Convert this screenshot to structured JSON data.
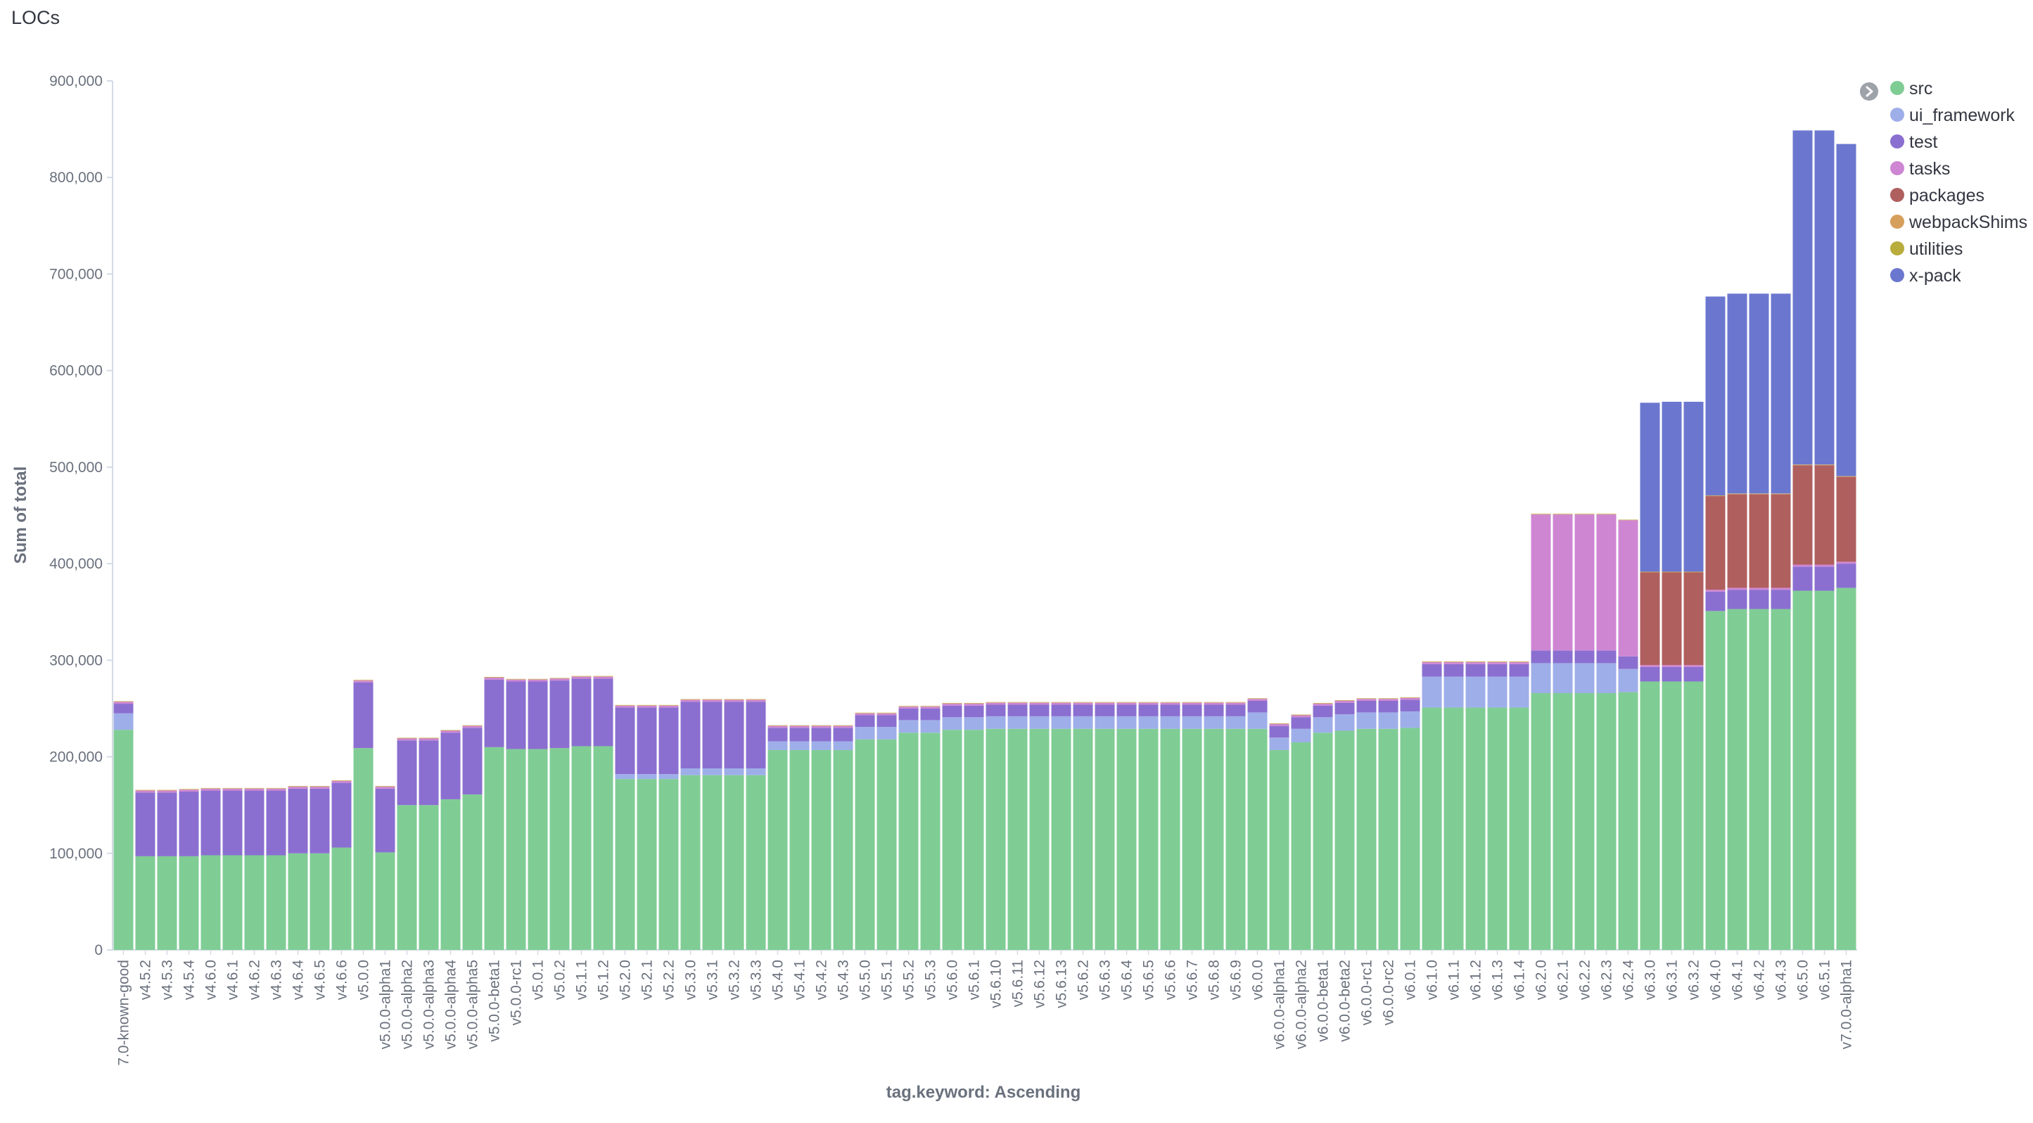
{
  "panel": {
    "title": "LOCs"
  },
  "colors": {
    "src": "#7fcd95",
    "ui_framework": "#9eaee9",
    "test": "#8b6fd0",
    "tasks": "#ce86d3",
    "packages": "#b05f5f",
    "webpackShims": "#d69f5c",
    "utilities": "#b8ac3c",
    "x-pack": "#6b77cf",
    "legend_toggle": "#9ea2a9"
  },
  "legend": {
    "toggle_icon": "chevron-right-icon",
    "position": "top-right"
  },
  "chart_data": {
    "type": "bar",
    "stacked": true,
    "title": "LOCs",
    "xlabel": "tag.keyword: Ascending",
    "ylabel": "Sum of total",
    "ylim": [
      0,
      900000
    ],
    "yticks": [
      "0",
      "100,000",
      "200,000",
      "300,000",
      "400,000",
      "500,000",
      "600,000",
      "700,000",
      "800,000",
      "900,000"
    ],
    "grid": false,
    "categories": [
      "7.0-known-good",
      "v4.5.2",
      "v4.5.3",
      "v4.5.4",
      "v4.6.0",
      "v4.6.1",
      "v4.6.2",
      "v4.6.3",
      "v4.6.4",
      "v4.6.5",
      "v4.6.6",
      "v5.0.0",
      "v5.0.0-alpha1",
      "v5.0.0-alpha2",
      "v5.0.0-alpha3",
      "v5.0.0-alpha4",
      "v5.0.0-alpha5",
      "v5.0.0-beta1",
      "v5.0.0-rc1",
      "v5.0.1",
      "v5.0.2",
      "v5.1.1",
      "v5.1.2",
      "v5.2.0",
      "v5.2.1",
      "v5.2.2",
      "v5.3.0",
      "v5.3.1",
      "v5.3.2",
      "v5.3.3",
      "v5.4.0",
      "v5.4.1",
      "v5.4.2",
      "v5.4.3",
      "v5.5.0",
      "v5.5.1",
      "v5.5.2",
      "v5.5.3",
      "v5.6.0",
      "v5.6.1",
      "v5.6.10",
      "v5.6.11",
      "v5.6.12",
      "v5.6.13",
      "v5.6.2",
      "v5.6.3",
      "v5.6.4",
      "v5.6.5",
      "v5.6.6",
      "v5.6.7",
      "v5.6.8",
      "v5.6.9",
      "v6.0.0",
      "v6.0.0-alpha1",
      "v6.0.0-alpha2",
      "v6.0.0-beta1",
      "v6.0.0-beta2",
      "v6.0.0-rc1",
      "v6.0.0-rc2",
      "v6.0.1",
      "v6.1.0",
      "v6.1.1",
      "v6.1.2",
      "v6.1.3",
      "v6.1.4",
      "v6.2.0",
      "v6.2.1",
      "v6.2.2",
      "v6.2.3",
      "v6.2.4",
      "v6.3.0",
      "v6.3.1",
      "v6.3.2",
      "v6.4.0",
      "v6.4.1",
      "v6.4.2",
      "v6.4.3",
      "v6.5.0",
      "v6.5.1",
      "v7.0.0-alpha1"
    ],
    "xtick_labels": [
      "7.0-known-good",
      "v4.5.2",
      "v4.5.3",
      "v4.5.4",
      "v4.6.0",
      "v4.6.1",
      "v4.6.2",
      "v4.6.3",
      "v4.6.4",
      "v4.6.5",
      "v4.6.6",
      "v5.0.0",
      "v5.0.0-alpha1",
      "v5.0.0-alpha2",
      "v5.0.0-alpha3",
      "v5.0.0-alpha4",
      "v5.0.0-alpha5",
      "v5.0.0-beta1",
      "v5.0.0-rc1",
      "v5.0.1",
      "v5.0.2",
      "v5.1.1",
      "v5.1.2",
      "v5.2.0",
      "v5.2.1",
      "v5.2.2",
      "v5.3.0",
      "v5.3.1",
      "v5.3.2",
      "v5.3.3",
      "v5.4.0",
      "v5.4.1",
      "v5.4.2",
      "v5.4.3",
      "v5.5.0",
      "v5.5.1",
      "v5.5.2",
      "v5.5.3",
      "v5.6.0",
      "v5.6.1",
      "v5.6.10",
      "v5.6.11",
      "v5.6.12",
      "v5.6.13",
      "v5.6.2",
      "v5.6.3",
      "v5.6.4",
      "v5.6.5",
      "v5.6.6",
      "v5.6.7",
      "v5.6.8",
      "v5.6.9",
      "v6.0.0",
      "v6.0.0-alpha1",
      "v6.0.0-alpha2",
      "v6.0.0-beta1",
      "v6.0.0-beta2",
      "v6.0.0-rc1",
      "v6.0.0-rc2",
      "v6.0.1",
      "v6.1.0",
      "v6.1.1",
      "v6.1.2",
      "v6.1.3",
      "v6.1.4",
      "v6.2.0",
      "v6.2.1",
      "v6.2.2",
      "v6.2.3",
      "v6.2.4",
      "v6.3.0",
      "v6.3.1",
      "v6.3.2",
      "v6.4.0",
      "v6.4.1",
      "v6.4.2",
      "v6.4.3",
      "v6.5.0",
      "v6.5.1",
      "v7.0.0-alpha1"
    ],
    "series": [
      {
        "name": "src",
        "values": [
          228000,
          97000,
          97000,
          97000,
          98000,
          98000,
          98000,
          98000,
          100000,
          100000,
          106000,
          209000,
          101000,
          150000,
          150000,
          156000,
          161000,
          210000,
          208000,
          208000,
          209000,
          211000,
          211000,
          177000,
          177000,
          177000,
          181000,
          181000,
          181000,
          181000,
          207000,
          207000,
          207000,
          207000,
          218000,
          218000,
          225000,
          225000,
          228000,
          228000,
          229000,
          229000,
          229000,
          229000,
          229000,
          229000,
          229000,
          229000,
          229000,
          229000,
          229000,
          229000,
          229000,
          207000,
          215000,
          225000,
          227000,
          229000,
          229000,
          230000,
          251000,
          251000,
          251000,
          251000,
          251000,
          266000,
          266000,
          266000,
          266000,
          267000,
          278000,
          278000,
          278000,
          351000,
          353000,
          353000,
          353000,
          372000,
          372000,
          375000
        ]
      },
      {
        "name": "ui_framework",
        "values": [
          17000,
          0,
          0,
          0,
          0,
          0,
          0,
          0,
          0,
          0,
          0,
          0,
          0,
          0,
          0,
          0,
          0,
          0,
          0,
          0,
          0,
          0,
          0,
          5000,
          5000,
          5000,
          7000,
          7000,
          7000,
          7000,
          9000,
          9000,
          9000,
          9000,
          13000,
          13000,
          13000,
          13000,
          13000,
          13000,
          13000,
          13000,
          13000,
          13000,
          13000,
          13000,
          13000,
          13000,
          13000,
          13000,
          13000,
          13000,
          17000,
          13000,
          14000,
          16000,
          17000,
          17000,
          17000,
          17000,
          32000,
          32000,
          32000,
          32000,
          32000,
          31000,
          31000,
          31000,
          31000,
          24000,
          0,
          0,
          0,
          0,
          0,
          0,
          0,
          0,
          0,
          0
        ]
      },
      {
        "name": "test",
        "values": [
          10000,
          66000,
          66000,
          67000,
          67000,
          67000,
          67000,
          67000,
          67000,
          67000,
          67000,
          68000,
          66000,
          67000,
          67000,
          69000,
          69000,
          70000,
          70000,
          70000,
          70000,
          70000,
          70000,
          69000,
          69000,
          69000,
          69000,
          69000,
          69000,
          69000,
          14000,
          14000,
          14000,
          14000,
          12000,
          12000,
          12000,
          12000,
          12000,
          12000,
          12000,
          12000,
          12000,
          12000,
          12000,
          12000,
          12000,
          12000,
          12000,
          12000,
          12000,
          12000,
          12000,
          12000,
          12000,
          12000,
          12000,
          12000,
          12000,
          12000,
          13000,
          13000,
          13000,
          13000,
          13000,
          13000,
          13000,
          13000,
          13000,
          13000,
          15000,
          15000,
          15000,
          20000,
          20000,
          20000,
          20000,
          25000,
          25000,
          25000
        ]
      },
      {
        "name": "tasks",
        "values": [
          2000,
          2000,
          2000,
          2000,
          2000,
          2000,
          2000,
          2000,
          2000,
          2000,
          2000,
          2000,
          2000,
          2000,
          2000,
          2000,
          2000,
          2000,
          2000,
          2000,
          2000,
          2000,
          2000,
          2000,
          2000,
          2000,
          2000,
          2000,
          2000,
          2000,
          2000,
          2000,
          2000,
          2000,
          2000,
          2000,
          2000,
          2000,
          2000,
          2000,
          2000,
          2000,
          2000,
          2000,
          2000,
          2000,
          2000,
          2000,
          2000,
          2000,
          2000,
          2000,
          2000,
          2000,
          2000,
          2000,
          2000,
          2000,
          2000,
          2000,
          2000,
          2000,
          2000,
          2000,
          2000,
          141000,
          141000,
          141000,
          141000,
          141000,
          2000,
          2000,
          2000,
          2000,
          2000,
          2000,
          2000,
          2000,
          2000,
          2000
        ]
      },
      {
        "name": "packages",
        "values": [
          0,
          0,
          0,
          0,
          0,
          0,
          0,
          0,
          0,
          0,
          0,
          0,
          0,
          0,
          0,
          0,
          0,
          0,
          0,
          0,
          0,
          0,
          0,
          0,
          0,
          0,
          0,
          0,
          0,
          0,
          0,
          0,
          0,
          0,
          0,
          0,
          0,
          0,
          0,
          0,
          0,
          0,
          0,
          0,
          0,
          0,
          0,
          0,
          0,
          0,
          0,
          0,
          0,
          0,
          0,
          0,
          0,
          0,
          0,
          0,
          0,
          0,
          0,
          0,
          0,
          0,
          0,
          0,
          0,
          0,
          96000,
          96000,
          96000,
          97000,
          97000,
          97000,
          97000,
          103000,
          103000,
          88000
        ]
      },
      {
        "name": "webpackShims",
        "values": [
          400,
          400,
          400,
          400,
          400,
          400,
          400,
          400,
          400,
          400,
          400,
          400,
          400,
          400,
          400,
          400,
          400,
          400,
          400,
          400,
          400,
          400,
          400,
          400,
          400,
          400,
          400,
          400,
          400,
          400,
          400,
          400,
          400,
          400,
          400,
          400,
          400,
          400,
          400,
          400,
          400,
          400,
          400,
          400,
          400,
          400,
          400,
          400,
          400,
          400,
          400,
          400,
          400,
          400,
          400,
          400,
          400,
          400,
          400,
          400,
          400,
          400,
          400,
          400,
          400,
          400,
          400,
          400,
          400,
          400,
          400,
          400,
          400,
          400,
          400,
          400,
          400,
          400,
          400,
          400
        ]
      },
      {
        "name": "utilities",
        "values": [
          300,
          300,
          300,
          300,
          300,
          300,
          300,
          300,
          300,
          300,
          300,
          300,
          300,
          300,
          300,
          300,
          300,
          300,
          300,
          300,
          300,
          300,
          300,
          300,
          300,
          300,
          300,
          300,
          300,
          300,
          300,
          300,
          300,
          300,
          300,
          300,
          300,
          300,
          300,
          300,
          300,
          300,
          300,
          300,
          300,
          300,
          300,
          300,
          300,
          300,
          300,
          300,
          300,
          300,
          300,
          300,
          300,
          300,
          300,
          300,
          300,
          300,
          300,
          300,
          300,
          300,
          300,
          300,
          300,
          300,
          300,
          300,
          300,
          300,
          300,
          300,
          300,
          300,
          300,
          300
        ]
      },
      {
        "name": "x-pack",
        "values": [
          0,
          0,
          0,
          0,
          0,
          0,
          0,
          0,
          0,
          0,
          0,
          0,
          0,
          0,
          0,
          0,
          0,
          0,
          0,
          0,
          0,
          0,
          0,
          0,
          0,
          0,
          0,
          0,
          0,
          0,
          0,
          0,
          0,
          0,
          0,
          0,
          0,
          0,
          0,
          0,
          0,
          0,
          0,
          0,
          0,
          0,
          0,
          0,
          0,
          0,
          0,
          0,
          0,
          0,
          0,
          0,
          0,
          0,
          0,
          0,
          0,
          0,
          0,
          0,
          0,
          0,
          0,
          0,
          0,
          0,
          175000,
          176000,
          176000,
          206000,
          207000,
          207000,
          207000,
          346000,
          346000,
          344000
        ]
      }
    ]
  }
}
